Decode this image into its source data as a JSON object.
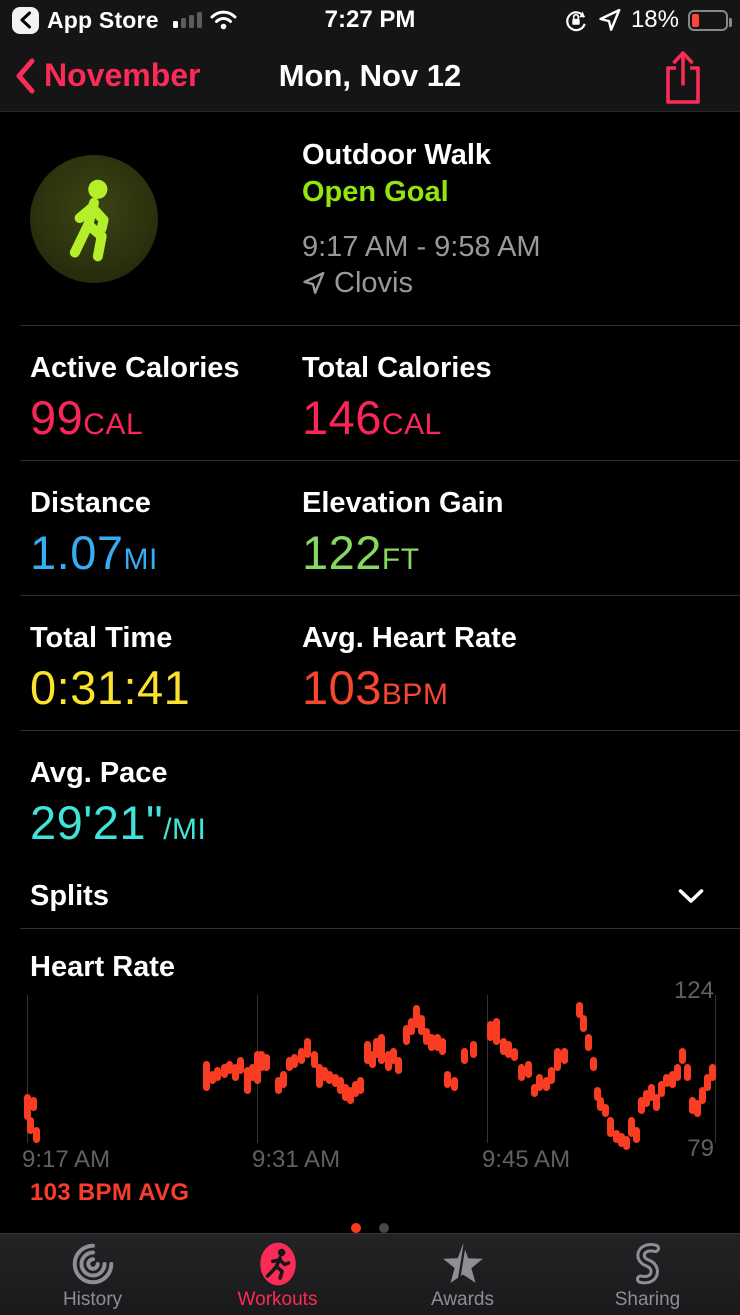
{
  "status_bar": {
    "back_app": "App Store",
    "time": "7:27 PM",
    "battery_percent": "18%",
    "battery_color": "#fb453c",
    "signal_bars_filled": 1,
    "signal_bars_total": 4
  },
  "nav": {
    "back_label": "November",
    "title": "Mon, Nov 12",
    "accent": "#fb2b57"
  },
  "workout": {
    "type": "Outdoor Walk",
    "goal": "Open Goal",
    "goal_color": "#90e60e",
    "time_range": "9:17 AM - 9:58 AM",
    "location": "Clovis"
  },
  "stats": [
    {
      "label": "Active Calories",
      "value": "99",
      "unit": "CAL",
      "color": "#fb2558"
    },
    {
      "label": "Total Calories",
      "value": "146",
      "unit": "CAL",
      "color": "#fb2558"
    },
    {
      "label": "Distance",
      "value": "1.07",
      "unit": "MI",
      "color": "#38acf2"
    },
    {
      "label": "Elevation Gain",
      "value": "122",
      "unit": "FT",
      "color": "#86d960"
    },
    {
      "label": "Total Time",
      "value": "0:31:41",
      "unit": "",
      "color": "#fbe22d"
    },
    {
      "label": "Avg. Heart Rate",
      "value": "103",
      "unit": "BPM",
      "color": "#fa4530"
    },
    {
      "label": "Avg. Pace",
      "value": "29'21\"",
      "unit": "/MI",
      "color": "#41e3d9"
    }
  ],
  "splits": {
    "label": "Splits"
  },
  "heart_rate": {
    "title": "Heart Rate",
    "avg_label": "103 BPM AVG",
    "avg_color": "#fa3d2a"
  },
  "chart_data": {
    "type": "scatter",
    "title": "Heart Rate",
    "ylabel": "BPM",
    "ylim": [
      79,
      124
    ],
    "y_axis_labels": {
      "top": "124",
      "bottom": "79"
    },
    "grid": true,
    "dot_color": "#fa3d22",
    "avg_bpm": 103,
    "x_ticks": [
      {
        "t_min": 0,
        "label": "9:17 AM"
      },
      {
        "t_min": 14,
        "label": "9:31 AM"
      },
      {
        "t_min": 28,
        "label": "9:45 AM"
      },
      {
        "t_min": 41.9,
        "label": ""
      }
    ],
    "points_format": "[minutes_from_start, bpm_low, bpm_high]",
    "points": [
      [
        0.05,
        88,
        94
      ],
      [
        0.4,
        91,
        93
      ],
      [
        0.2,
        84,
        87
      ],
      [
        0.55,
        81,
        84
      ],
      [
        10.9,
        97,
        104
      ],
      [
        11.3,
        99,
        101
      ],
      [
        11.6,
        100,
        102
      ],
      [
        12.0,
        101,
        103
      ],
      [
        12.3,
        102,
        104
      ],
      [
        12.7,
        100,
        103
      ],
      [
        13.0,
        102,
        105
      ],
      [
        13.4,
        96,
        102
      ],
      [
        13.7,
        100,
        103
      ],
      [
        14.0,
        99,
        107
      ],
      [
        14.3,
        103,
        107
      ],
      [
        14.6,
        103,
        106
      ],
      [
        15.3,
        96,
        99
      ],
      [
        15.6,
        98,
        101
      ],
      [
        16.0,
        103,
        105
      ],
      [
        16.3,
        104,
        106
      ],
      [
        16.7,
        105,
        108
      ],
      [
        17.1,
        107,
        111
      ],
      [
        17.5,
        104,
        107
      ],
      [
        17.8,
        98,
        103
      ],
      [
        18.1,
        100,
        102
      ],
      [
        18.4,
        99,
        101
      ],
      [
        18.8,
        98,
        100
      ],
      [
        19.1,
        96,
        99
      ],
      [
        19.4,
        94,
        97
      ],
      [
        19.7,
        93,
        96
      ],
      [
        20.0,
        95,
        98
      ],
      [
        20.3,
        96,
        99
      ],
      [
        20.7,
        105,
        110
      ],
      [
        21.0,
        104,
        107
      ],
      [
        21.3,
        107,
        111
      ],
      [
        21.6,
        105,
        112
      ],
      [
        22.0,
        103,
        107
      ],
      [
        22.3,
        105,
        108
      ],
      [
        22.6,
        102,
        105
      ],
      [
        23.1,
        111,
        115
      ],
      [
        23.4,
        114,
        117
      ],
      [
        23.7,
        116,
        121
      ],
      [
        24.0,
        114,
        118
      ],
      [
        24.3,
        111,
        114
      ],
      [
        24.6,
        109,
        112
      ],
      [
        25.0,
        109,
        112
      ],
      [
        25.3,
        108,
        111
      ],
      [
        25.6,
        98,
        101
      ],
      [
        26.0,
        97,
        99
      ],
      [
        26.6,
        105,
        108
      ],
      [
        27.2,
        107,
        110
      ],
      [
        28.2,
        112,
        116
      ],
      [
        28.6,
        111,
        117
      ],
      [
        29.0,
        108,
        111
      ],
      [
        29.3,
        107,
        110
      ],
      [
        29.7,
        106,
        108
      ],
      [
        30.1,
        100,
        103
      ],
      [
        30.5,
        101,
        104
      ],
      [
        30.9,
        95,
        97
      ],
      [
        31.2,
        97,
        100
      ],
      [
        31.6,
        97,
        99
      ],
      [
        31.9,
        99,
        102
      ],
      [
        32.3,
        103,
        108
      ],
      [
        32.7,
        105,
        108
      ],
      [
        33.6,
        119,
        122
      ],
      [
        33.9,
        115,
        118
      ],
      [
        34.2,
        109,
        112
      ],
      [
        34.5,
        103,
        105
      ],
      [
        34.7,
        94,
        96
      ],
      [
        34.9,
        91,
        93
      ],
      [
        35.2,
        89,
        91
      ],
      [
        35.5,
        83,
        87
      ],
      [
        35.9,
        81,
        83
      ],
      [
        36.2,
        80,
        82
      ],
      [
        36.5,
        79,
        81
      ],
      [
        36.8,
        83,
        87
      ],
      [
        37.1,
        81,
        84
      ],
      [
        37.4,
        90,
        93
      ],
      [
        37.7,
        92,
        95
      ],
      [
        38.0,
        94,
        97
      ],
      [
        38.3,
        91,
        94
      ],
      [
        38.6,
        95,
        98
      ],
      [
        38.9,
        98,
        100
      ],
      [
        39.3,
        98,
        101
      ],
      [
        39.6,
        100,
        103
      ],
      [
        39.9,
        105,
        108
      ],
      [
        40.2,
        100,
        103
      ],
      [
        40.5,
        90,
        93
      ],
      [
        40.8,
        89,
        92
      ],
      [
        41.1,
        93,
        96
      ],
      [
        41.4,
        97,
        100
      ],
      [
        41.7,
        100,
        103
      ]
    ]
  },
  "page_control": {
    "count": 2,
    "active": 0,
    "active_color": "#fa3a1e",
    "inactive_color": "#48484a"
  },
  "tab_bar": {
    "active_color": "#fb2b57",
    "inactive_color": "#8e8e93",
    "items": [
      {
        "label": "History"
      },
      {
        "label": "Workouts",
        "active": true
      },
      {
        "label": "Awards"
      },
      {
        "label": "Sharing"
      }
    ]
  }
}
